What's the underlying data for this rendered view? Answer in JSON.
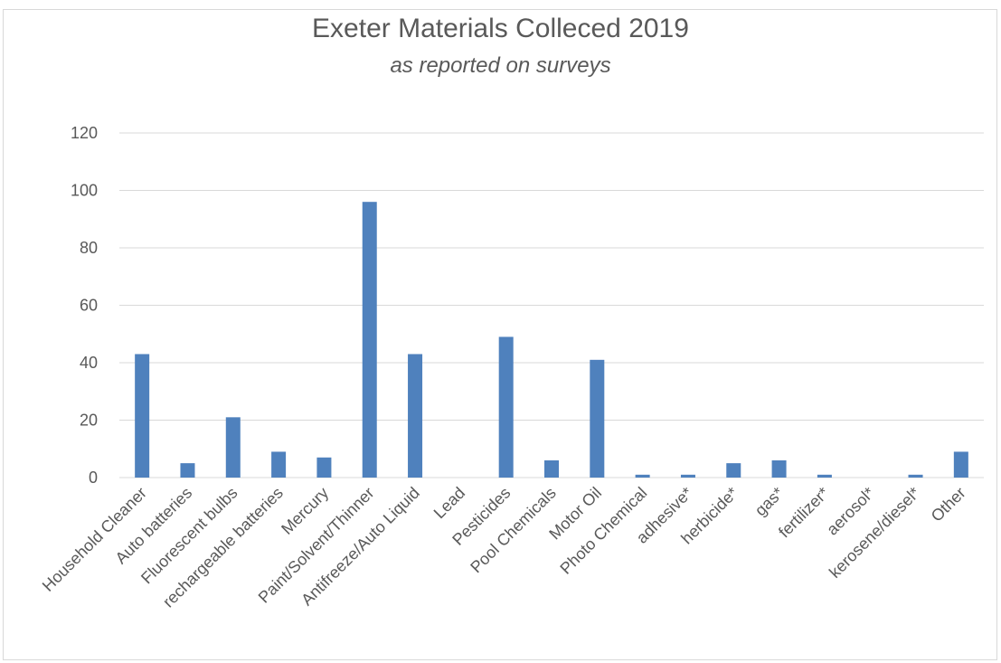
{
  "chart_data": {
    "type": "bar",
    "title": "Exeter Materials Colleced 2019",
    "subtitle": "as reported on surveys",
    "xlabel": "",
    "ylabel": "",
    "ylim": [
      0,
      120
    ],
    "yticks": [
      0,
      20,
      40,
      60,
      80,
      100,
      120
    ],
    "grid": true,
    "legend": "none",
    "bar_color": "#4f81bd",
    "grid_color": "#d9d9d9",
    "text_color": "#595959",
    "categories": [
      "Household Cleaner",
      "Auto batteries",
      "Fluorescent bulbs",
      "rechargeable batteries",
      "Mercury",
      "Paint/Solvent/Thinner",
      "Antifreeze/Auto Liquid",
      "Lead",
      "Pesticides",
      "Pool Chemicals",
      "Motor Oil",
      "Photo Chemical",
      "adhesive*",
      "herbicide*",
      "gas*",
      "fertilizer*",
      "aerosol*",
      "kerosene/diesel*",
      "Other"
    ],
    "values": [
      43,
      5,
      21,
      9,
      7,
      96,
      43,
      0,
      49,
      6,
      41,
      1,
      1,
      5,
      6,
      1,
      0,
      1,
      9
    ]
  }
}
